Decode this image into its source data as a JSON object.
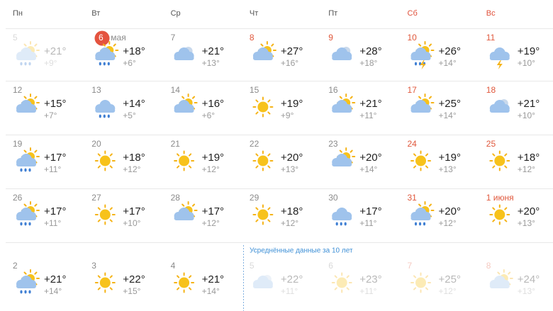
{
  "weekdays": [
    "Пн",
    "Вт",
    "Ср",
    "Чт",
    "Пт",
    "Сб",
    "Вс"
  ],
  "weeks": [
    [
      {
        "date": "5",
        "high": "+21°",
        "low": "+9°"
      },
      {
        "date": "6",
        "month": "мая",
        "high": "+18°",
        "low": "+6°"
      },
      {
        "date": "7",
        "high": "+21°",
        "low": "+13°"
      },
      {
        "date": "8",
        "high": "+27°",
        "low": "+16°"
      },
      {
        "date": "9",
        "high": "+28°",
        "low": "+18°"
      },
      {
        "date": "10",
        "high": "+26°",
        "low": "+14°"
      },
      {
        "date": "11",
        "high": "+19°",
        "low": "+10°"
      }
    ],
    [
      {
        "date": "12",
        "high": "+15°",
        "low": "+7°"
      },
      {
        "date": "13",
        "high": "+14°",
        "low": "+5°"
      },
      {
        "date": "14",
        "high": "+16°",
        "low": "+6°"
      },
      {
        "date": "15",
        "high": "+19°",
        "low": "+9°"
      },
      {
        "date": "16",
        "high": "+21°",
        "low": "+11°"
      },
      {
        "date": "17",
        "high": "+25°",
        "low": "+14°"
      },
      {
        "date": "18",
        "high": "+21°",
        "low": "+10°"
      }
    ],
    [
      {
        "date": "19",
        "high": "+17°",
        "low": "+11°"
      },
      {
        "date": "20",
        "high": "+18°",
        "low": "+12°"
      },
      {
        "date": "21",
        "high": "+19°",
        "low": "+12°"
      },
      {
        "date": "22",
        "high": "+20°",
        "low": "+13°"
      },
      {
        "date": "23",
        "high": "+20°",
        "low": "+14°"
      },
      {
        "date": "24",
        "high": "+19°",
        "low": "+13°"
      },
      {
        "date": "25",
        "high": "+18°",
        "low": "+12°"
      }
    ],
    [
      {
        "date": "26",
        "high": "+17°",
        "low": "+11°"
      },
      {
        "date": "27",
        "high": "+17°",
        "low": "+10°"
      },
      {
        "date": "28",
        "high": "+17°",
        "low": "+12°"
      },
      {
        "date": "29",
        "high": "+18°",
        "low": "+12°"
      },
      {
        "date": "30",
        "high": "+17°",
        "low": "+11°"
      },
      {
        "date": "31",
        "high": "+20°",
        "low": "+12°"
      },
      {
        "date": "1 июня",
        "high": "+20°",
        "low": "+13°"
      }
    ],
    [
      {
        "date": "2",
        "high": "+21°",
        "low": "+14°"
      },
      {
        "date": "3",
        "high": "+22°",
        "low": "+15°"
      },
      {
        "date": "4",
        "high": "+21°",
        "low": "+14°"
      },
      {
        "date": "5",
        "high": "+22°",
        "low": "+11°"
      },
      {
        "date": "6",
        "high": "+23°",
        "low": "+11°"
      },
      {
        "date": "7",
        "high": "+25°",
        "low": "+12°"
      },
      {
        "date": "8",
        "high": "+24°",
        "low": "+13°"
      }
    ]
  ],
  "average_note": "Усреднённые данные за 10 лет"
}
